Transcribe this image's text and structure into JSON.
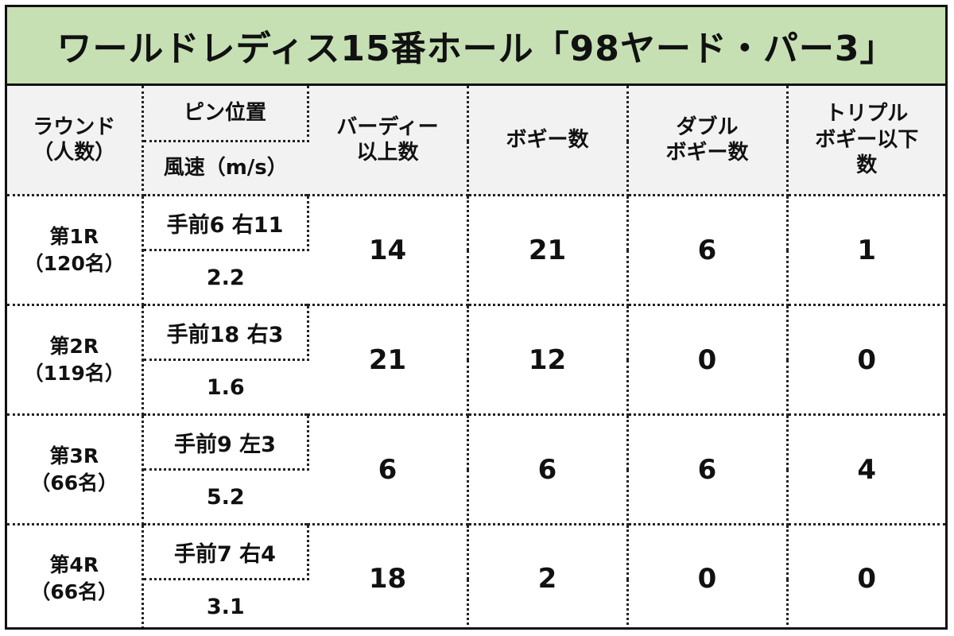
{
  "title": "ワールドレディス15番ホール「98ヤード・パー3」",
  "headers": {
    "round_line1": "ラウンド",
    "round_line2": "（人数）",
    "pin": "ピン位置",
    "wind": "風速（m/s）",
    "birdie_line1": "バーディー",
    "birdie_line2": "以上数",
    "bogey": "ボギー数",
    "double_line1": "ダブル",
    "double_line2": "ボギー数",
    "triple_line1": "トリプル",
    "triple_line2": "ボギー以下",
    "triple_line3": "数"
  },
  "rows": [
    {
      "round": "第1R",
      "players": "（120名）",
      "pin": "手前6 右11",
      "wind": "2.2",
      "birdie": "14",
      "bogey": "21",
      "double": "6",
      "triple": "1"
    },
    {
      "round": "第2R",
      "players": "（119名）",
      "pin": "手前18 右3",
      "wind": "1.6",
      "birdie": "21",
      "bogey": "12",
      "double": "0",
      "triple": "0"
    },
    {
      "round": "第3R",
      "players": "（66名）",
      "pin": "手前9 左3",
      "wind": "5.2",
      "birdie": "6",
      "bogey": "6",
      "double": "6",
      "triple": "4"
    },
    {
      "round": "第4R",
      "players": "（66名）",
      "pin": "手前7 右4",
      "wind": "3.1",
      "birdie": "18",
      "bogey": "2",
      "double": "0",
      "triple": "0"
    }
  ],
  "colors": {
    "title_background": "#c6e0b4",
    "header_background": "#f2f2f2",
    "border": "#111111"
  }
}
